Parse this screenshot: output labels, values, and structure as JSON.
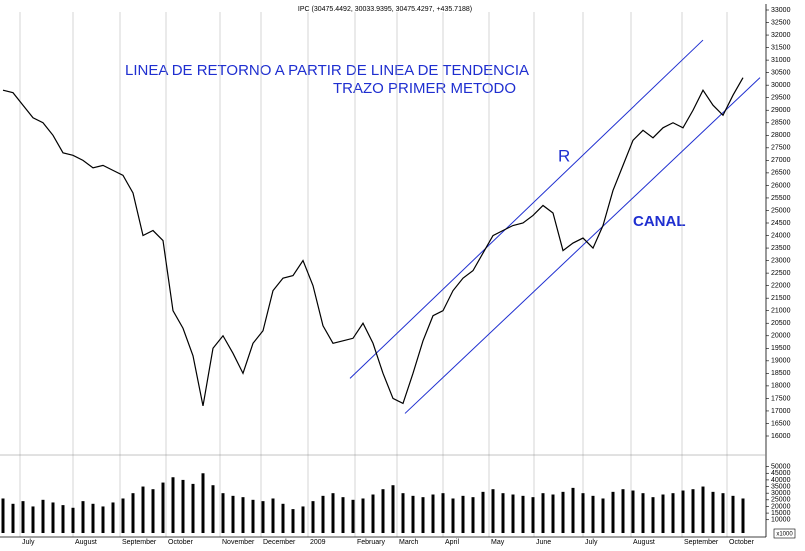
{
  "chart_data": [
    {
      "type": "line",
      "title": "IPC (30475.4492, 30033.9395, 30475.4297, +435.7188)",
      "annotations": [
        "LINEA DE RETORNO   A PARTIR DE  LINEA DE TENDENCIA",
        "TRAZO PRIMER METODO",
        "R",
        "CANAL"
      ],
      "series": [
        {
          "name": "IPC",
          "color": "#000000",
          "values": [
            29800,
            29700,
            29200,
            28700,
            28500,
            28000,
            27300,
            27200,
            27000,
            26700,
            26800,
            26600,
            26400,
            25700,
            24000,
            24200,
            23800,
            21000,
            20300,
            19200,
            17200,
            19500,
            20000,
            19300,
            18500,
            19700,
            20200,
            21800,
            22300,
            22400,
            23000,
            22000,
            20400,
            19700,
            19800,
            19900,
            20500,
            19700,
            18500,
            17500,
            17300,
            18500,
            19800,
            20800,
            21000,
            21800,
            22300,
            22600,
            23300,
            24000,
            24200,
            24400,
            24500,
            24800,
            25200,
            24900,
            23400,
            23700,
            23900,
            23500,
            24400,
            25800,
            26800,
            27800,
            28200,
            27900,
            28300,
            28500,
            28300,
            29000,
            29800,
            29200,
            28800,
            29600,
            30300
          ]
        }
      ],
      "channel_lines": [
        {
          "color": "#1f2fd0",
          "x": [
            34.7,
            70
          ],
          "y": [
            18300,
            31800
          ]
        },
        {
          "color": "#1f2fd0",
          "x": [
            40.2,
            75.7
          ],
          "y": [
            16900,
            30300
          ]
        }
      ],
      "xlim": [
        0,
        76
      ],
      "xticks": [
        {
          "value": 1.7,
          "label": "July"
        },
        {
          "value": 7,
          "label": "August"
        },
        {
          "value": 11.7,
          "label": "September"
        },
        {
          "value": 16.3,
          "label": "October"
        },
        {
          "value": 21.7,
          "label": "November"
        },
        {
          "value": 25.8,
          "label": "December"
        },
        {
          "value": 30.5,
          "label": "2009"
        },
        {
          "value": 35.2,
          "label": "February"
        },
        {
          "value": 39.4,
          "label": "March"
        },
        {
          "value": 44,
          "label": "April"
        },
        {
          "value": 48.6,
          "label": "May"
        },
        {
          "value": 53.1,
          "label": "June"
        },
        {
          "value": 58,
          "label": "July"
        },
        {
          "value": 62.8,
          "label": "August"
        },
        {
          "value": 67.9,
          "label": "September"
        },
        {
          "value": 72.4,
          "label": "October"
        }
      ],
      "ylim": [
        16000,
        33000
      ],
      "yticks": [
        16000,
        16500,
        17000,
        17500,
        18000,
        18500,
        19000,
        19500,
        20000,
        20500,
        21000,
        21500,
        22000,
        22500,
        23000,
        23500,
        24000,
        24500,
        25000,
        25500,
        26000,
        26500,
        27000,
        27500,
        28000,
        28500,
        29000,
        29500,
        30000,
        30500,
        31000,
        31500,
        32000,
        32500,
        33000
      ],
      "grid": true
    },
    {
      "type": "bar",
      "y_label": "x1000",
      "color": "#000000",
      "values": [
        26000,
        22000,
        24000,
        20000,
        25000,
        23000,
        21000,
        19000,
        24000,
        22000,
        20000,
        23000,
        26000,
        30000,
        35000,
        33000,
        38000,
        42000,
        40000,
        37000,
        45000,
        36000,
        30000,
        28000,
        27000,
        25000,
        24000,
        26000,
        22000,
        18000,
        20000,
        24000,
        28000,
        30000,
        27000,
        25000,
        26000,
        29000,
        33000,
        36000,
        30000,
        28000,
        27000,
        29000,
        30000,
        26000,
        28000,
        27000,
        31000,
        33000,
        30000,
        29000,
        28000,
        27000,
        30000,
        29000,
        31000,
        34000,
        30000,
        28000,
        26000,
        31000,
        33000,
        32000,
        30000,
        27000,
        29000,
        30000,
        32000,
        33000,
        35000,
        31000,
        30000,
        28000,
        26000
      ],
      "ylim": [
        0,
        55000
      ],
      "yticks": [
        10000,
        15000,
        20000,
        25000,
        30000,
        35000,
        40000,
        45000,
        50000
      ]
    }
  ]
}
